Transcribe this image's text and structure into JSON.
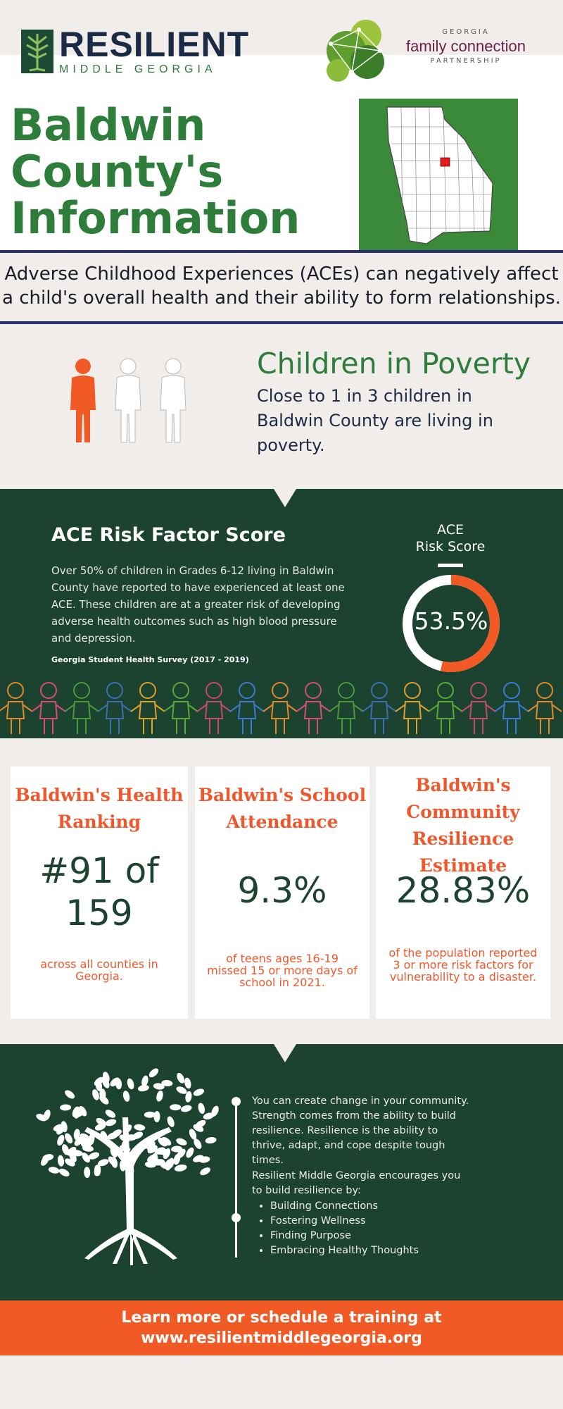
{
  "header": {
    "logo_title": "RESILIENT",
    "logo_subtitle": "MIDDLE GEORGIA",
    "partner_top": "GEORGIA",
    "partner_main": "family connection",
    "partner_bottom": "PARTNERSHIP"
  },
  "title": {
    "line1": "Baldwin",
    "line2": "County's",
    "line3": "Information"
  },
  "aces_statement": {
    "line1": "Adverse Childhood Experiences (ACEs) can negatively affect",
    "line2": "a child's overall health and their ability to form relationships."
  },
  "poverty": {
    "title": "Children in Poverty",
    "text": "Close to 1 in 3 children in Baldwin County are living in poverty.",
    "people_highlighted": 1,
    "people_total": 3
  },
  "ace": {
    "title": "ACE Risk Factor Score",
    "body": "Over 50% of children in Grades 6-12 living in Baldwin County have reported to have experienced at least one ACE. These children are at a greater risk of developing adverse health outcomes such as high blood pressure and depression.",
    "source": "Georgia Student Health Survey (2017 - 2019)",
    "score_label_line1": "ACE",
    "score_label_line2": "Risk Score",
    "score_value": "53.5%",
    "score_fraction": 0.535
  },
  "cards": [
    {
      "title": "Baldwin's Health Ranking",
      "value": "#91 of 159",
      "note": "across all counties in Georgia."
    },
    {
      "title": "Baldwin's School Attendance",
      "value": "9.3%",
      "note": "of teens ages 16-19 missed 15 or more days of school in 2021."
    },
    {
      "title": "Baldwin's Community Resilience Estimate",
      "value": "28.83%",
      "note": "of the population reported 3 or more risk factors for vulnerability to a disaster."
    }
  ],
  "resilience": {
    "paragraph1": "You can create change in your community. Strength comes from the ability to build resilience. Resilience is the ability to thrive, adapt, and cope despite tough times.",
    "paragraph2": "Resilient Middle Georgia encourages you to build resilience by:",
    "items": [
      "Building Connections",
      "Fostering Wellness",
      "Finding Purpose",
      "Embracing Healthy Thoughts"
    ]
  },
  "cta": {
    "line1": "Learn more or schedule a training at",
    "line2": "www.resilientmiddlegeorgia.org"
  },
  "colors": {
    "green_dark": "#1c4230",
    "green_title": "#2f7d3b",
    "orange": "#f15a24",
    "navy": "#1b2a45"
  }
}
